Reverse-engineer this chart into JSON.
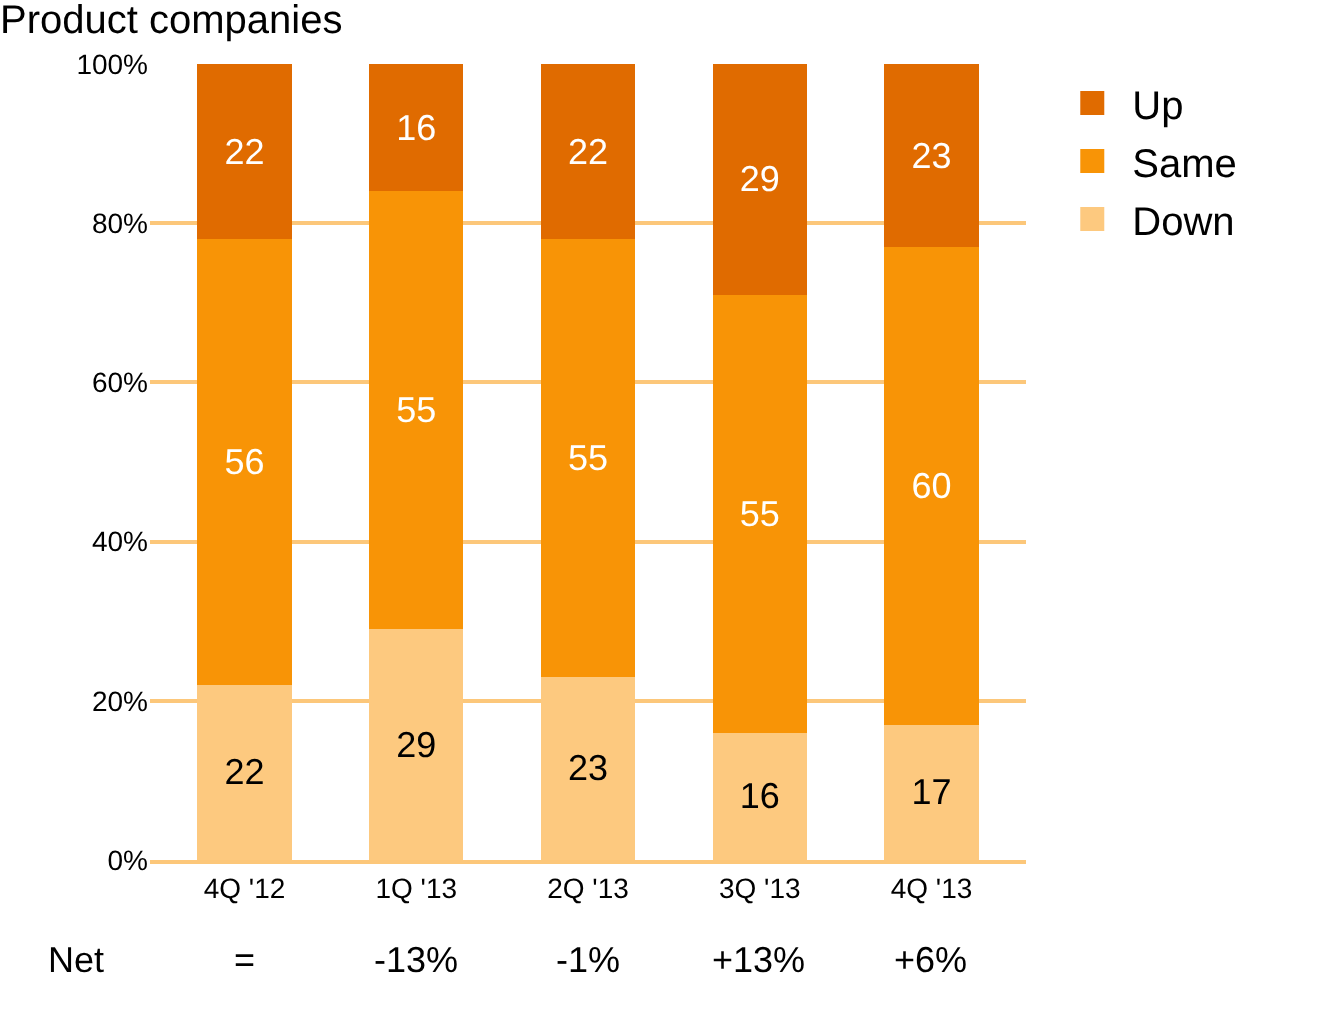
{
  "chart_data": {
    "type": "bar",
    "title": "Product companies",
    "stacked": true,
    "categories": [
      "4Q '12",
      "1Q '13",
      "2Q '13",
      "3Q '13",
      "4Q '13"
    ],
    "series": [
      {
        "name": "Down",
        "color": "#fdc97f",
        "values": [
          22,
          29,
          23,
          16,
          17
        ]
      },
      {
        "name": "Same",
        "color": "#f89406",
        "values": [
          56,
          55,
          55,
          55,
          60
        ]
      },
      {
        "name": "Up",
        "color": "#e06b00",
        "values": [
          22,
          16,
          22,
          29,
          23
        ]
      }
    ],
    "ylim": [
      0,
      100
    ],
    "yticks": [
      {
        "value": 0,
        "label": "0%"
      },
      {
        "value": 20,
        "label": "20%"
      },
      {
        "value": 40,
        "label": "40%"
      },
      {
        "value": 60,
        "label": "60%"
      },
      {
        "value": 80,
        "label": "80%"
      },
      {
        "value": 100,
        "label": "100%"
      }
    ],
    "grid": "y",
    "legend": "top right",
    "data_labels": true,
    "annotations": [
      "Net",
      "=",
      "-13%",
      "-1%",
      "+13%",
      "+6%"
    ]
  }
}
